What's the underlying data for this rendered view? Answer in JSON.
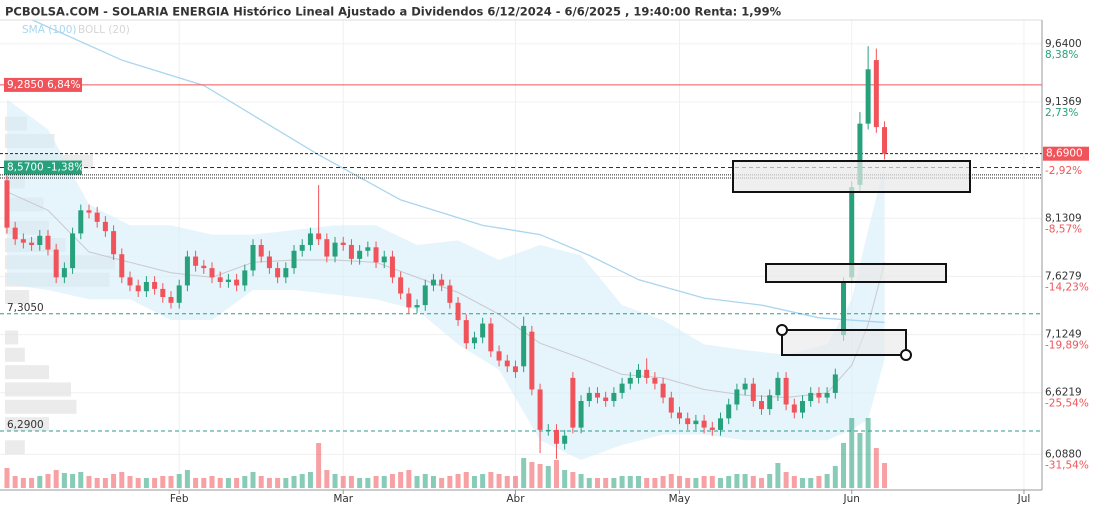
{
  "chart_data": {
    "type": "candlestick",
    "title": "PCBOLSA.COM - SOLARIA ENERGIA Histórico Lineal Ajustado a Dividendos 6/12/2024 - 6/6/2025 , 19:40:00 Renta: 1,99%",
    "legend": [
      "SMA (100)",
      "BOLL (20)"
    ],
    "up_color": "#26a17b",
    "down_color": "#f0545a",
    "xlim": [
      -0.85,
      126.2
    ],
    "xticks": [
      {
        "value": 21,
        "label": "Feb"
      },
      {
        "value": 41,
        "label": "Mar"
      },
      {
        "value": 62,
        "label": "Abr"
      },
      {
        "value": 82,
        "label": "May"
      },
      {
        "value": 103,
        "label": "Jun"
      },
      {
        "value": 124,
        "label": "Jul"
      }
    ],
    "ylim": [
      5.78,
      9.89
    ],
    "yticks": [
      {
        "value": 9.64,
        "label": "9,6400"
      },
      {
        "value": 9.1369,
        "label": "9,1369"
      },
      {
        "value": 8.1309,
        "label": "8,1309"
      },
      {
        "value": 7.6279,
        "label": "7,6279"
      },
      {
        "value": 7.1249,
        "label": "7,1249"
      },
      {
        "value": 6.6219,
        "label": "6,6219"
      },
      {
        "value": 6.088,
        "label": "6,0880"
      }
    ],
    "ypct_ticks": [
      {
        "value": 9.64,
        "label": "8,38%"
      },
      {
        "value": 9.1369,
        "label": "2,73%"
      },
      {
        "value": 8.6339,
        "label": "-2,92%"
      },
      {
        "value": 8.1309,
        "label": "-8,57%"
      },
      {
        "value": 7.6279,
        "label": "-14,23%"
      },
      {
        "value": 7.1249,
        "label": "-19,89%"
      },
      {
        "value": 6.6219,
        "label": "-25,54%"
      },
      {
        "value": 6.088,
        "label": "-31,54%"
      }
    ],
    "grid": true,
    "open": [
      8.46,
      8.05,
      7.95,
      7.92,
      7.9,
      7.98,
      7.86,
      7.62,
      7.7,
      8.0,
      8.2,
      8.18,
      8.1,
      8.02,
      7.82,
      7.62,
      7.55,
      7.5,
      7.58,
      7.52,
      7.45,
      7.4,
      7.55,
      7.8,
      7.72,
      7.7,
      7.62,
      7.58,
      7.6,
      7.55,
      7.68,
      7.9,
      7.8,
      7.7,
      7.62,
      7.7,
      7.85,
      7.9,
      8.0,
      7.95,
      7.8,
      7.92,
      7.9,
      7.78,
      7.85,
      7.88,
      7.75,
      7.8,
      7.62,
      7.48,
      7.36,
      7.38,
      7.55,
      7.6,
      7.55,
      7.4,
      7.25,
      7.05,
      7.1,
      7.22,
      6.98,
      6.9,
      6.85,
      6.85,
      7.15,
      6.65,
      6.3,
      6.3,
      6.18,
      6.75,
      6.32,
      6.55,
      6.62,
      6.58,
      6.55,
      6.62,
      6.7,
      6.75,
      6.82,
      6.75,
      6.7,
      6.58,
      6.45,
      6.4,
      6.35,
      6.38,
      6.32,
      6.3,
      6.4,
      6.52,
      6.65,
      6.7,
      6.55,
      6.48,
      6.6,
      6.75,
      6.52,
      6.45,
      6.55,
      6.62,
      6.58,
      6.62,
      7.12,
      7.62,
      8.42,
      8.95,
      9.5,
      8.92
    ],
    "high": [
      8.5,
      8.1,
      8.0,
      7.97,
      8.03,
      8.03,
      7.91,
      7.75,
      8.05,
      8.25,
      8.25,
      8.23,
      8.15,
      8.07,
      7.87,
      7.67,
      7.6,
      7.63,
      7.63,
      7.57,
      7.5,
      7.6,
      7.85,
      7.85,
      7.77,
      7.75,
      7.67,
      7.65,
      7.65,
      7.73,
      7.95,
      7.95,
      7.85,
      7.75,
      7.75,
      7.9,
      7.95,
      8.05,
      8.42,
      8.0,
      7.97,
      7.97,
      7.95,
      7.9,
      7.93,
      7.93,
      7.85,
      7.85,
      7.67,
      7.53,
      7.43,
      7.6,
      7.65,
      7.65,
      7.6,
      7.45,
      7.3,
      7.15,
      7.27,
      7.27,
      7.03,
      6.95,
      6.9,
      7.28,
      7.2,
      6.7,
      6.35,
      6.35,
      6.3,
      6.8,
      6.6,
      6.67,
      6.67,
      6.63,
      6.67,
      6.75,
      6.8,
      6.87,
      6.92,
      6.8,
      6.75,
      6.63,
      6.5,
      6.45,
      6.43,
      6.43,
      6.37,
      6.45,
      6.57,
      6.7,
      6.75,
      6.75,
      6.6,
      6.65,
      6.8,
      6.8,
      6.57,
      6.6,
      6.67,
      6.67,
      6.67,
      6.83,
      7.62,
      8.45,
      9.05,
      9.62,
      9.6,
      8.97
    ],
    "low": [
      8.0,
      7.9,
      7.87,
      7.85,
      7.85,
      7.81,
      7.57,
      7.57,
      7.65,
      7.95,
      8.13,
      8.05,
      7.97,
      7.77,
      7.57,
      7.5,
      7.45,
      7.45,
      7.47,
      7.4,
      7.35,
      7.35,
      7.5,
      7.67,
      7.65,
      7.57,
      7.53,
      7.53,
      7.5,
      7.5,
      7.63,
      7.75,
      7.65,
      7.57,
      7.57,
      7.65,
      7.8,
      7.85,
      7.9,
      7.75,
      7.75,
      7.85,
      7.73,
      7.73,
      7.8,
      7.7,
      7.7,
      7.57,
      7.43,
      7.31,
      7.31,
      7.33,
      7.5,
      7.5,
      7.35,
      7.2,
      7.0,
      7.0,
      7.05,
      6.93,
      6.85,
      6.8,
      6.75,
      6.8,
      6.6,
      6.1,
      6.25,
      6.05,
      6.13,
      6.27,
      6.27,
      6.5,
      6.53,
      6.5,
      6.5,
      6.57,
      6.65,
      6.7,
      6.7,
      6.65,
      6.53,
      6.4,
      6.35,
      6.3,
      6.3,
      6.27,
      6.25,
      6.25,
      6.35,
      6.47,
      6.6,
      6.5,
      6.43,
      6.43,
      6.55,
      6.47,
      6.4,
      6.4,
      6.5,
      6.53,
      6.53,
      6.57,
      7.07,
      7.57,
      8.37,
      8.9,
      8.87,
      8.64
    ],
    "close": [
      8.05,
      7.95,
      7.92,
      7.9,
      7.98,
      7.86,
      7.62,
      7.7,
      8.0,
      8.2,
      8.18,
      8.1,
      8.02,
      7.82,
      7.62,
      7.55,
      7.5,
      7.58,
      7.52,
      7.45,
      7.4,
      7.55,
      7.8,
      7.72,
      7.7,
      7.62,
      7.58,
      7.6,
      7.55,
      7.68,
      7.9,
      7.8,
      7.7,
      7.62,
      7.7,
      7.85,
      7.9,
      8.0,
      7.95,
      7.8,
      7.92,
      7.9,
      7.78,
      7.85,
      7.88,
      7.75,
      7.8,
      7.62,
      7.48,
      7.36,
      7.38,
      7.55,
      7.6,
      7.55,
      7.4,
      7.25,
      7.05,
      7.1,
      7.22,
      6.98,
      6.9,
      6.85,
      6.8,
      7.2,
      6.65,
      6.3,
      6.3,
      6.18,
      6.25,
      6.32,
      6.55,
      6.62,
      6.58,
      6.55,
      6.62,
      6.7,
      6.75,
      6.82,
      6.75,
      6.7,
      6.58,
      6.45,
      6.4,
      6.35,
      6.38,
      6.32,
      6.3,
      6.4,
      6.52,
      6.65,
      6.7,
      6.55,
      6.48,
      6.6,
      6.75,
      6.52,
      6.45,
      6.55,
      6.62,
      6.58,
      6.62,
      6.78,
      7.58,
      8.4,
      8.95,
      9.42,
      8.92,
      8.69
    ],
    "volume": [
      20,
      12,
      10,
      10,
      12,
      14,
      18,
      15,
      14,
      16,
      12,
      10,
      10,
      14,
      16,
      12,
      10,
      10,
      10,
      12,
      12,
      14,
      18,
      10,
      10,
      12,
      10,
      10,
      10,
      12,
      16,
      12,
      10,
      10,
      10,
      12,
      14,
      16,
      45,
      18,
      14,
      12,
      12,
      10,
      10,
      12,
      12,
      14,
      16,
      18,
      12,
      14,
      12,
      10,
      12,
      14,
      16,
      12,
      14,
      16,
      14,
      12,
      12,
      30,
      26,
      24,
      22,
      28,
      18,
      16,
      14,
      10,
      10,
      10,
      10,
      12,
      12,
      12,
      10,
      10,
      12,
      14,
      12,
      10,
      10,
      12,
      12,
      10,
      12,
      14,
      14,
      12,
      10,
      14,
      25,
      16,
      12,
      10,
      10,
      12,
      14,
      22,
      45,
      70,
      55,
      70,
      40,
      25
    ],
    "vlim": [
      0,
      100
    ],
    "sma": {
      "color": "#a9d6ef",
      "x": [
        3,
        14,
        24,
        31,
        38,
        48,
        58,
        65,
        71,
        77,
        85,
        92,
        99,
        107
      ],
      "values": [
        9.85,
        9.5,
        9.28,
        8.98,
        8.68,
        8.29,
        8.07,
        7.99,
        7.81,
        7.6,
        7.44,
        7.38,
        7.27,
        7.23
      ]
    },
    "boll": {
      "color": "#d6ecfa",
      "mid_color": "#c9c9c9",
      "x": [
        0,
        5,
        10,
        15,
        20,
        25,
        30,
        35,
        40,
        45,
        50,
        55,
        60,
        65,
        70,
        75,
        80,
        85,
        90,
        95,
        100,
        103,
        105,
        107
      ],
      "upper": [
        9.16,
        8.9,
        8.25,
        8.07,
        8.07,
        7.99,
        7.99,
        8.03,
        8.07,
        8.07,
        7.9,
        7.94,
        7.77,
        7.9,
        7.81,
        7.38,
        7.25,
        7.04,
        6.99,
        6.95,
        7.04,
        7.43,
        8.03,
        8.59
      ],
      "lower": [
        7.56,
        7.51,
        7.43,
        7.43,
        7.25,
        7.25,
        7.51,
        7.51,
        7.47,
        7.43,
        7.34,
        7.04,
        6.82,
        6.21,
        6.04,
        6.17,
        6.26,
        6.26,
        6.21,
        6.21,
        6.21,
        6.3,
        6.39,
        6.91
      ],
      "mid": [
        8.36,
        8.2,
        7.84,
        7.75,
        7.66,
        7.62,
        7.75,
        7.77,
        7.77,
        7.75,
        7.62,
        7.49,
        7.3,
        7.05,
        6.92,
        6.78,
        6.75,
        6.65,
        6.6,
        6.58,
        6.62,
        6.86,
        7.21,
        7.75
      ]
    },
    "hlines": [
      {
        "value": 9.285,
        "label": "9,2850 6,84%",
        "color": "#f0545a",
        "style": "solid"
      },
      {
        "value": 8.57,
        "label": "8,5700 -1,38%",
        "color": "#26a17b",
        "style": "dashed"
      },
      {
        "value": 7.305,
        "label": "7,3050",
        "color": "#2a9d8f",
        "style": "dashed"
      },
      {
        "value": 6.29,
        "label": "6,2900",
        "color": "#2a9d8f",
        "style": "dashed"
      }
    ],
    "dotted_lines": [
      8.507,
      8.48
    ],
    "last_price": {
      "value": 8.69,
      "label": "8,6900",
      "color": "#f0545a"
    },
    "volume_profile": {
      "prices": [
        8.95,
        8.8,
        8.62,
        8.45,
        8.25,
        8.05,
        7.9,
        7.75,
        7.6,
        7.45,
        7.1,
        6.95,
        6.8,
        6.65,
        6.5,
        6.35,
        6.15
      ],
      "sizes": [
        20,
        45,
        80,
        18,
        35,
        40,
        55,
        100,
        95,
        22,
        12,
        18,
        40,
        60,
        65,
        40,
        18
      ]
    }
  }
}
